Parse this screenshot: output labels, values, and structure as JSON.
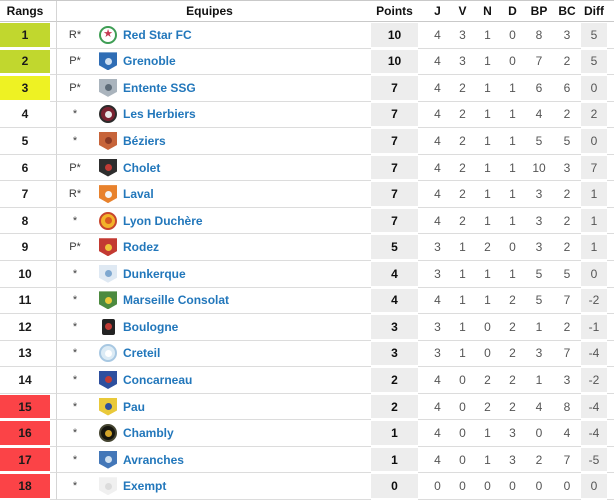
{
  "widget_title": "football-standings-table",
  "colors": {
    "promotion_green": "#c1d72e",
    "playoff_yellow": "#eef223",
    "relegation_red": "#fb4347",
    "link_blue": "#2277bb",
    "gray_column": "#ededed",
    "row_border": "#dcdcdc"
  },
  "header": {
    "rank": "Rangs",
    "team": "Equipes",
    "points": "Points",
    "j": "J",
    "v": "V",
    "n": "N",
    "d": "D",
    "bp": "BP",
    "bc": "BC",
    "diff": "Diff"
  },
  "rows": [
    {
      "rank": "1",
      "zone": "green",
      "status": "R*",
      "team": "Red Star FC",
      "points": "10",
      "j": "4",
      "v": "3",
      "n": "1",
      "d": "0",
      "bp": "8",
      "bc": "3",
      "diff": "5",
      "logo": {
        "shape": "circle",
        "bg": "#ffffff",
        "border": "#3f9e55",
        "accent": "#c43a52",
        "glyph": "★"
      }
    },
    {
      "rank": "2",
      "zone": "green",
      "status": "P*",
      "team": "Grenoble",
      "points": "10",
      "j": "4",
      "v": "3",
      "n": "1",
      "d": "0",
      "bp": "7",
      "bc": "2",
      "diff": "5",
      "logo": {
        "shape": "shield",
        "bg": "#2f6db5",
        "accent": "#cfe0f2"
      }
    },
    {
      "rank": "3",
      "zone": "yellow",
      "status": "P*",
      "team": "Entente SSG",
      "points": "7",
      "j": "4",
      "v": "2",
      "n": "1",
      "d": "1",
      "bp": "6",
      "bc": "6",
      "diff": "0",
      "logo": {
        "shape": "shield",
        "bg": "#aab4bd",
        "accent": "#5d6b77"
      }
    },
    {
      "rank": "4",
      "zone": "none",
      "status": "*",
      "team": "Les Herbiers",
      "points": "7",
      "j": "4",
      "v": "2",
      "n": "1",
      "d": "1",
      "bp": "4",
      "bc": "2",
      "diff": "2",
      "logo": {
        "shape": "circle",
        "bg": "#7a2230",
        "border": "#2b2b2b",
        "accent": "#e8e8e8"
      }
    },
    {
      "rank": "5",
      "zone": "none",
      "status": "*",
      "team": "Béziers",
      "points": "7",
      "j": "4",
      "v": "2",
      "n": "1",
      "d": "1",
      "bp": "5",
      "bc": "5",
      "diff": "0",
      "logo": {
        "shape": "shield",
        "bg": "#c7643a",
        "accent": "#8a3a26"
      }
    },
    {
      "rank": "6",
      "zone": "none",
      "status": "P*",
      "team": "Cholet",
      "points": "7",
      "j": "4",
      "v": "2",
      "n": "1",
      "d": "1",
      "bp": "10",
      "bc": "3",
      "diff": "7",
      "logo": {
        "shape": "shield",
        "bg": "#2e2e2e",
        "accent": "#c13b35"
      }
    },
    {
      "rank": "7",
      "zone": "none",
      "status": "R*",
      "team": "Laval",
      "points": "7",
      "j": "4",
      "v": "2",
      "n": "1",
      "d": "1",
      "bp": "3",
      "bc": "2",
      "diff": "1",
      "logo": {
        "shape": "shield",
        "bg": "#e8822d",
        "accent": "#f5f5f5"
      }
    },
    {
      "rank": "8",
      "zone": "none",
      "status": "*",
      "team": "Lyon Duchère",
      "points": "7",
      "j": "4",
      "v": "2",
      "n": "1",
      "d": "1",
      "bp": "3",
      "bc": "2",
      "diff": "1",
      "logo": {
        "shape": "circle",
        "bg": "#f2b32a",
        "border": "#c8452c",
        "accent": "#d95a22"
      }
    },
    {
      "rank": "9",
      "zone": "none",
      "status": "P*",
      "team": "Rodez",
      "points": "5",
      "j": "3",
      "v": "1",
      "n": "2",
      "d": "0",
      "bp": "3",
      "bc": "2",
      "diff": "1",
      "logo": {
        "shape": "shield",
        "bg": "#c33a32",
        "accent": "#f0c43a"
      }
    },
    {
      "rank": "10",
      "zone": "none",
      "status": "*",
      "team": "Dunkerque",
      "points": "4",
      "j": "3",
      "v": "1",
      "n": "1",
      "d": "1",
      "bp": "5",
      "bc": "5",
      "diff": "0",
      "logo": {
        "shape": "shield",
        "bg": "#dfe9f3",
        "accent": "#7fa8d0"
      }
    },
    {
      "rank": "11",
      "zone": "none",
      "status": "*",
      "team": "Marseille Consolat",
      "points": "4",
      "j": "4",
      "v": "1",
      "n": "1",
      "d": "2",
      "bp": "5",
      "bc": "7",
      "diff": "-2",
      "logo": {
        "shape": "shield",
        "bg": "#4c8a3f",
        "accent": "#e9c93a"
      }
    },
    {
      "rank": "12",
      "zone": "none",
      "status": "*",
      "team": "Boulogne",
      "points": "3",
      "j": "3",
      "v": "1",
      "n": "0",
      "d": "2",
      "bp": "1",
      "bc": "2",
      "diff": "-1",
      "logo": {
        "shape": "rect",
        "bg": "#232323",
        "accent": "#c13b35"
      }
    },
    {
      "rank": "13",
      "zone": "none",
      "status": "*",
      "team": "Creteil",
      "points": "3",
      "j": "3",
      "v": "1",
      "n": "0",
      "d": "2",
      "bp": "3",
      "bc": "7",
      "diff": "-4",
      "logo": {
        "shape": "circle",
        "bg": "#dcebf5",
        "border": "#a8c8e2",
        "accent": "#ffffff"
      }
    },
    {
      "rank": "14",
      "zone": "none",
      "status": "*",
      "team": "Concarneau",
      "points": "2",
      "j": "4",
      "v": "0",
      "n": "2",
      "d": "2",
      "bp": "1",
      "bc": "3",
      "diff": "-2",
      "logo": {
        "shape": "shield",
        "bg": "#2d4f9e",
        "accent": "#c13b35"
      }
    },
    {
      "rank": "15",
      "zone": "red",
      "status": "*",
      "team": "Pau",
      "points": "2",
      "j": "4",
      "v": "0",
      "n": "2",
      "d": "2",
      "bp": "4",
      "bc": "8",
      "diff": "-4",
      "logo": {
        "shape": "shield",
        "bg": "#e9c93a",
        "accent": "#2d4f9e"
      }
    },
    {
      "rank": "16",
      "zone": "red",
      "status": "*",
      "team": "Chambly",
      "points": "1",
      "j": "4",
      "v": "0",
      "n": "1",
      "d": "3",
      "bp": "0",
      "bc": "4",
      "diff": "-4",
      "logo": {
        "shape": "circle",
        "bg": "#16160f",
        "border": "#454531",
        "accent": "#d2a42a"
      }
    },
    {
      "rank": "17",
      "zone": "red",
      "status": "*",
      "team": "Avranches",
      "points": "1",
      "j": "4",
      "v": "0",
      "n": "1",
      "d": "3",
      "bp": "2",
      "bc": "7",
      "diff": "-5",
      "logo": {
        "shape": "shield",
        "bg": "#4377b8",
        "accent": "#cfe0f0"
      }
    },
    {
      "rank": "18",
      "zone": "red",
      "status": "*",
      "team": "Exempt",
      "points": "0",
      "j": "0",
      "v": "0",
      "n": "0",
      "d": "0",
      "bp": "0",
      "bc": "0",
      "diff": "0",
      "logo": {
        "shape": "shield",
        "bg": "#f0f0f0",
        "accent": "#dcdcdc"
      }
    }
  ]
}
